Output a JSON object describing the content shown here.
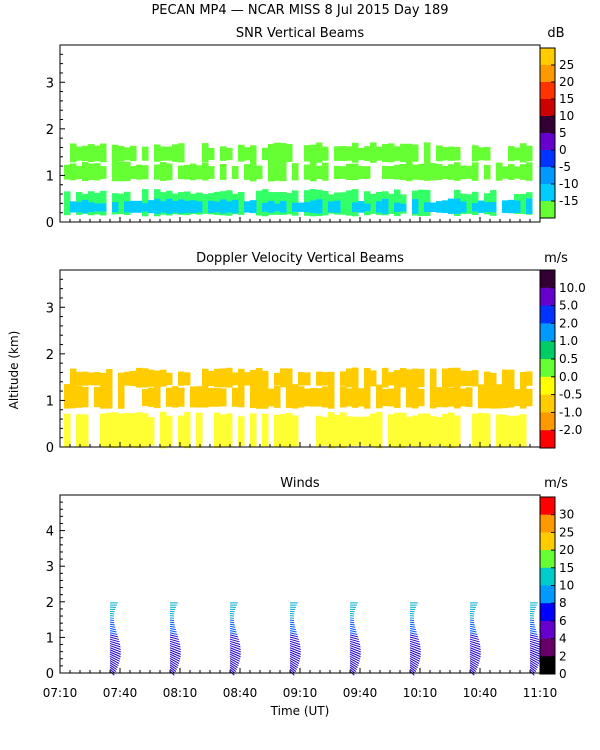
{
  "figure": {
    "title": "PECAN MP4 — NCAR MISS    8 Jul 2015 Day 189",
    "x_axis_label": "Time (UT)",
    "y_axis_label": "Altitude (km)"
  },
  "chart_data": [
    {
      "type": "heatmap",
      "title": "SNR Vertical Beams",
      "unit": "dB",
      "x_ticks": [
        "07:10",
        "07:40",
        "08:10",
        "08:40",
        "09:10",
        "09:40",
        "10:10",
        "10:40",
        "11:10"
      ],
      "ylim": [
        0,
        3.8
      ],
      "y_ticks": [
        0,
        1,
        2,
        3
      ],
      "colorbar": {
        "labels": [
          "25",
          "20",
          "15",
          "10",
          "5",
          "0",
          "-5",
          "-10",
          "-15"
        ],
        "colors": [
          "#ffcc00",
          "#ff9900",
          "#ff3300",
          "#cc0000",
          "#330033",
          "#6600cc",
          "#0033ff",
          "#0099ff",
          "#00ccff",
          "#66ff33"
        ]
      },
      "layers": [
        {
          "y0": 0.15,
          "y1": 0.65,
          "color": "#33ff66"
        },
        {
          "y0": 0.2,
          "y1": 0.45,
          "color": "#00ccff"
        },
        {
          "y0": 0.9,
          "y1": 1.25,
          "color": "#66ff33"
        },
        {
          "y0": 1.3,
          "y1": 1.65,
          "color": "#66ff33"
        }
      ]
    },
    {
      "type": "heatmap",
      "title": "Doppler Velocity Vertical Beams",
      "unit": "m/s",
      "x_ticks": [
        "07:10",
        "07:40",
        "08:10",
        "08:40",
        "09:10",
        "09:40",
        "10:10",
        "10:40",
        "11:10"
      ],
      "ylim": [
        0,
        3.8
      ],
      "y_ticks": [
        0,
        1,
        2,
        3
      ],
      "colorbar": {
        "labels": [
          "10.0",
          "5.0",
          "2.0",
          "1.0",
          "0.5",
          "0.0",
          "-0.5",
          "-1.0",
          "-2.0"
        ],
        "colors": [
          "#330033",
          "#6600cc",
          "#0033ff",
          "#0099ff",
          "#00cc66",
          "#66ff33",
          "#ffff00",
          "#ffcc00",
          "#ff9900",
          "#ff0000"
        ]
      },
      "layers": [
        {
          "y0": 0.0,
          "y1": 0.7,
          "color": "#ffff33"
        },
        {
          "y0": 0.85,
          "y1": 1.3,
          "color": "#ffcc00"
        },
        {
          "y0": 1.3,
          "y1": 1.65,
          "color": "#ffcc00"
        }
      ]
    },
    {
      "type": "scatter",
      "title": "Winds",
      "unit": "m/s",
      "x_ticks": [
        "07:10",
        "07:40",
        "08:10",
        "08:40",
        "09:10",
        "09:40",
        "10:10",
        "10:40",
        "11:10"
      ],
      "ylim": [
        0,
        5
      ],
      "y_ticks": [
        0,
        1,
        2,
        3,
        4
      ],
      "colorbar": {
        "labels": [
          "30",
          "25",
          "20",
          "15",
          "10",
          "8",
          "6",
          "4",
          "2",
          "0"
        ],
        "colors": [
          "#ff0000",
          "#ff9900",
          "#ffcc00",
          "#66ff33",
          "#00cccc",
          "#0099ff",
          "#0000ff",
          "#6600cc",
          "#660066",
          "#000000"
        ]
      },
      "profile_times": [
        "07:35",
        "08:05",
        "08:35",
        "09:05",
        "09:35",
        "10:05",
        "10:35",
        "11:05"
      ],
      "profile_times_min": [
        25,
        55,
        85,
        115,
        145,
        175,
        205,
        235
      ],
      "profile_top_km": 2.0
    }
  ]
}
